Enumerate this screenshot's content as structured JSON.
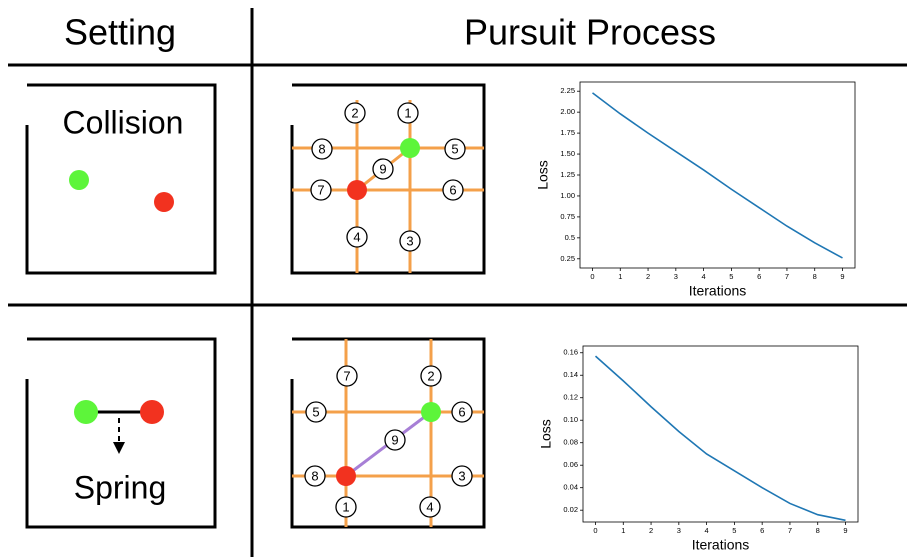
{
  "header": {
    "setting": "Setting",
    "process": "Pursuit Process"
  },
  "rows": [
    {
      "setting_label": "Collision",
      "nodes": [
        "2",
        "1",
        "8",
        "5",
        "9",
        "7",
        "6",
        "4",
        "3"
      ]
    },
    {
      "setting_label": "Spring",
      "nodes": [
        "7",
        "2",
        "5",
        "6",
        "9",
        "8",
        "3",
        "1",
        "4"
      ]
    }
  ],
  "chart_data": [
    {
      "type": "line",
      "x_label": "Iterations",
      "y_label": "Loss",
      "x": [
        0,
        1,
        2,
        3,
        4,
        5,
        6,
        7,
        8,
        9
      ],
      "values": [
        2.23,
        1.98,
        1.75,
        1.53,
        1.31,
        1.08,
        0.86,
        0.64,
        0.44,
        0.26
      ],
      "color": "#1f77b4",
      "xlim": [
        -0.45,
        9.45
      ],
      "ylim": [
        0.14,
        2.36
      ],
      "xticks": [
        0,
        1,
        2,
        3,
        4,
        5,
        6,
        7,
        8,
        9
      ],
      "yticks": [
        0.25,
        0.5,
        0.75,
        {
          "value": 1,
          "label": "1.00"
        },
        1.25,
        {
          "value": 1.5,
          "label": "1.50"
        },
        1.75,
        {
          "value": 2,
          "label": "2.00"
        },
        2.25
      ]
    },
    {
      "type": "line",
      "x_label": "Iterations",
      "y_label": "Loss",
      "x": [
        0,
        1,
        2,
        3,
        4,
        5,
        6,
        7,
        8,
        9
      ],
      "values": [
        0.157,
        0.135,
        0.112,
        0.09,
        0.07,
        0.055,
        0.04,
        0.026,
        0.016,
        0.011
      ],
      "color": "#1f77b4",
      "xlim": [
        -0.45,
        9.45
      ],
      "ylim": [
        0.0095,
        0.166
      ],
      "xticks": [
        0,
        1,
        2,
        3,
        4,
        5,
        6,
        7,
        8,
        9
      ],
      "yticks": [
        0.02,
        0.04,
        0.06,
        0.08,
        {
          "value": 0.1,
          "label": "0.10"
        },
        0.12,
        0.14,
        0.16
      ]
    }
  ]
}
